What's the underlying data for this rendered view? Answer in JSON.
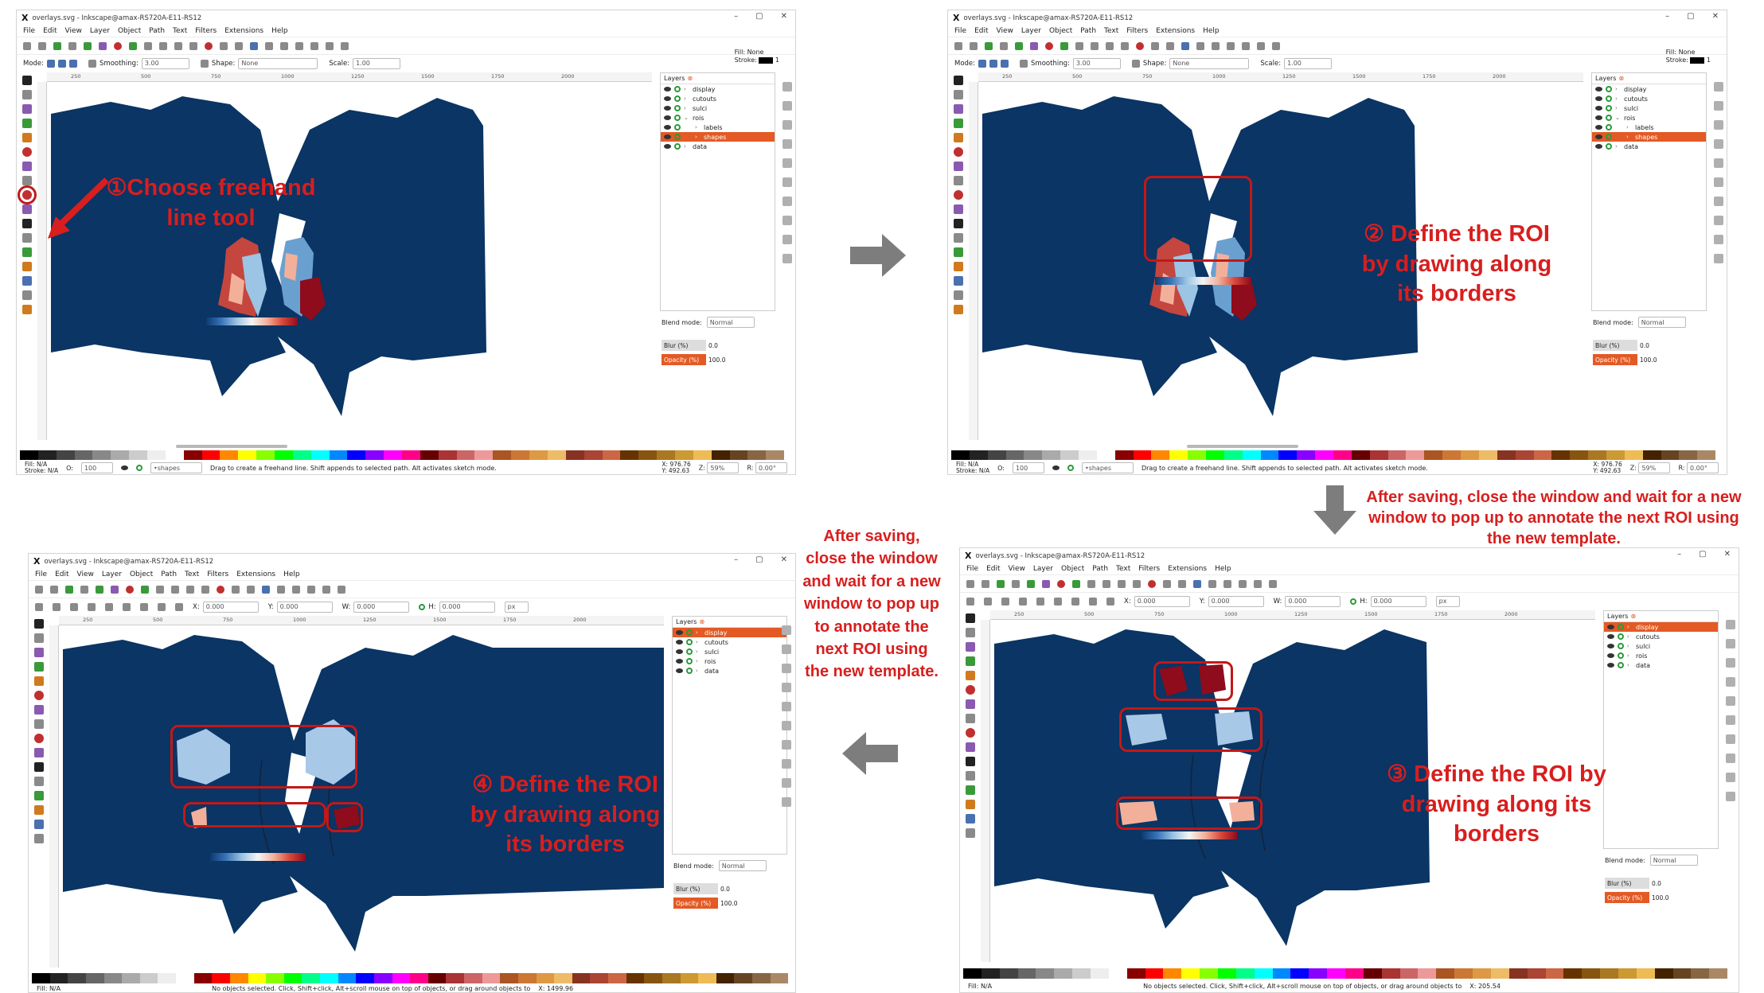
{
  "windows": [
    {
      "title": "overlays.svg - Inkscape@amax-RS720A-E11-RS12",
      "menu": [
        "File",
        "Edit",
        "View",
        "Layer",
        "Object",
        "Path",
        "Text",
        "Filters",
        "Extensions",
        "Help"
      ],
      "tool_controls": {
        "mode_label": "Mode:",
        "smoothing_label": "Smoothing:",
        "smoothing_value": "3.00",
        "shape_label": "Shape:",
        "shape_value": "None",
        "scale_label": "Scale:",
        "scale_value": "1.00"
      },
      "fill_stroke": {
        "fill_label": "Fill:",
        "fill_value": "None",
        "stroke_label": "Stroke:",
        "stroke_value": "1"
      },
      "ruler_ticks": [
        "250",
        "500",
        "750",
        "1000",
        "1250",
        "1500",
        "1750",
        "2000"
      ],
      "layers_title": "Layers",
      "layers": [
        {
          "name": "display",
          "indent": false,
          "selected": false
        },
        {
          "name": "cutouts",
          "indent": false,
          "selected": false
        },
        {
          "name": "sulci",
          "indent": false,
          "selected": false
        },
        {
          "name": "rois",
          "indent": false,
          "selected": false,
          "expanded": true
        },
        {
          "name": "labels",
          "indent": true,
          "selected": false
        },
        {
          "name": "shapes",
          "indent": true,
          "selected": true
        },
        {
          "name": "data",
          "indent": false,
          "selected": false
        }
      ],
      "blend_label": "Blend mode:",
      "blend_value": "Normal",
      "blur_label": "Blur (%)",
      "blur_value": "0.0",
      "opacity_label": "Opacity (%)",
      "opacity_value": "100.0",
      "status": {
        "fill": "Fill:",
        "fill_val": "N/A",
        "stroke": "Stroke:",
        "stroke_val": "N/A",
        "o_label": "O:",
        "o_val": "100",
        "layer": "•shapes",
        "message": "Drag to create a freehand line. Shift appends to selected path. Alt activates sketch mode.",
        "x": "976.76",
        "y": "492.63",
        "zoom": "59%",
        "rotate": "0.00°"
      }
    },
    {
      "title": "overlays.svg - Inkscape@amax-RS720A-E11-RS12",
      "menu": [
        "File",
        "Edit",
        "View",
        "Layer",
        "Object",
        "Path",
        "Text",
        "Filters",
        "Extensions",
        "Help"
      ],
      "tool_controls": {
        "mode_label": "Mode:",
        "smoothing_label": "Smoothing:",
        "smoothing_value": "3.00",
        "shape_label": "Shape:",
        "shape_value": "None",
        "scale_label": "Scale:",
        "scale_value": "1.00"
      },
      "fill_stroke": {
        "fill_label": "Fill:",
        "fill_value": "None",
        "stroke_label": "Stroke:",
        "stroke_value": "1"
      },
      "ruler_ticks": [
        "250",
        "500",
        "750",
        "1000",
        "1250",
        "1500",
        "1750",
        "2000"
      ],
      "layers_title": "Layers",
      "layers": [
        {
          "name": "display",
          "indent": false,
          "selected": false
        },
        {
          "name": "cutouts",
          "indent": false,
          "selected": false
        },
        {
          "name": "sulci",
          "indent": false,
          "selected": false
        },
        {
          "name": "rois",
          "indent": false,
          "selected": false,
          "expanded": true
        },
        {
          "name": "labels",
          "indent": true,
          "selected": false
        },
        {
          "name": "shapes",
          "indent": true,
          "selected": true
        },
        {
          "name": "data",
          "indent": false,
          "selected": false
        }
      ],
      "blend_label": "Blend mode:",
      "blend_value": "Normal",
      "blur_label": "Blur (%)",
      "blur_value": "0.0",
      "opacity_label": "Opacity (%)",
      "opacity_value": "100.0",
      "status": {
        "fill": "Fill:",
        "fill_val": "N/A",
        "stroke": "Stroke:",
        "stroke_val": "N/A",
        "o_label": "O:",
        "o_val": "100",
        "layer": "•shapes",
        "message": "Drag to create a freehand line. Shift appends to selected path. Alt activates sketch mode.",
        "x": "976.76",
        "y": "492.63",
        "zoom": "59%",
        "rotate": "0.00°"
      }
    },
    {
      "title": "overlays.svg - Inkscape@amax-RS720A-E11-RS12",
      "menu": [
        "File",
        "Edit",
        "View",
        "Layer",
        "Object",
        "Path",
        "Text",
        "Filters",
        "Extensions",
        "Help"
      ],
      "select_controls": {
        "x_label": "X:",
        "x_value": "0.000",
        "y_label": "Y:",
        "y_value": "0.000",
        "w_label": "W:",
        "w_value": "0.000",
        "h_label": "H:",
        "h_value": "0.000",
        "unit": "px"
      },
      "ruler_ticks": [
        "250",
        "500",
        "750",
        "1000",
        "1250",
        "1500",
        "1750",
        "2000"
      ],
      "layers_title": "Layers",
      "layers": [
        {
          "name": "display",
          "indent": false,
          "selected": true
        },
        {
          "name": "cutouts",
          "indent": false,
          "selected": false
        },
        {
          "name": "sulci",
          "indent": false,
          "selected": false
        },
        {
          "name": "rois",
          "indent": false,
          "selected": false
        },
        {
          "name": "data",
          "indent": false,
          "selected": false
        }
      ],
      "blend_label": "Blend mode:",
      "blend_value": "Normal",
      "blur_label": "Blur (%)",
      "blur_value": "0.0",
      "opacity_label": "Opacity (%)",
      "opacity_value": "100.0",
      "status": {
        "fill": "Fill:",
        "fill_val": "N/A",
        "message": "No objects selected. Click, Shift+click, Alt+scroll mouse on top of objects, or drag around objects to",
        "x": "1499.96"
      }
    },
    {
      "title": "overlays.svg - Inkscape@amax-RS720A-E11-RS12",
      "menu": [
        "File",
        "Edit",
        "View",
        "Layer",
        "Object",
        "Path",
        "Text",
        "Filters",
        "Extensions",
        "Help"
      ],
      "select_controls": {
        "x_label": "X:",
        "x_value": "0.000",
        "y_label": "Y:",
        "y_value": "0.000",
        "w_label": "W:",
        "w_value": "0.000",
        "h_label": "H:",
        "h_value": "0.000",
        "unit": "px"
      },
      "ruler_ticks": [
        "250",
        "500",
        "750",
        "1000",
        "1250",
        "1500",
        "1750",
        "2000"
      ],
      "layers_title": "Layers",
      "layers": [
        {
          "name": "display",
          "indent": false,
          "selected": true
        },
        {
          "name": "cutouts",
          "indent": false,
          "selected": false
        },
        {
          "name": "sulci",
          "indent": false,
          "selected": false
        },
        {
          "name": "rois",
          "indent": false,
          "selected": false
        },
        {
          "name": "data",
          "indent": false,
          "selected": false
        }
      ],
      "blend_label": "Blend mode:",
      "blend_value": "Normal",
      "blur_label": "Blur (%)",
      "blur_value": "0.0",
      "opacity_label": "Opacity (%)",
      "opacity_value": "100.0",
      "status": {
        "fill": "Fill:",
        "fill_val": "N/A",
        "message": "No objects selected. Click, Shift+click, Alt+scroll mouse on top of objects, or drag around objects to",
        "x": "205.54"
      }
    }
  ],
  "annotations": {
    "step1": "①Choose freehand line tool",
    "step2": "② Define the ROI by drawing along its borders",
    "step3": "③ Define the ROI by drawing along its borders",
    "step4": "④ Define the ROI by drawing along its borders",
    "note_right": "After saving, close the window and wait for a new window to pop up to annotate the next ROI using the new template.",
    "note_center": "After saving, close the window and wait for a new window to pop up to annotate the next ROI using the new template."
  },
  "colors": {
    "brain": "#0a3564",
    "accent": "#e35a24",
    "annotation": "#d81e1e",
    "arrow_gray": "#7d7d7d"
  }
}
